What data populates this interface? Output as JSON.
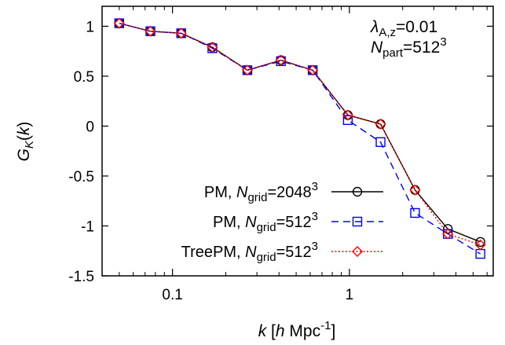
{
  "chart_data": {
    "type": "line",
    "title": "",
    "xlabel": {
      "var": "k",
      "pre": " [",
      "h": "h",
      "unit": " Mpc",
      "exp": "-1",
      "post": "]"
    },
    "ylabel": {
      "var": "G",
      "sub": "K",
      "open": "(",
      "arg": "k",
      "close": ")"
    },
    "xscale": "log",
    "xlim": [
      0.04,
      6.5
    ],
    "ylim": [
      -1.5,
      1.2
    ],
    "xticks": [
      {
        "value": 0.1,
        "label": "0.1"
      },
      {
        "value": 1,
        "label": "1"
      }
    ],
    "yticks": [
      {
        "value": 1,
        "label": "1"
      },
      {
        "value": 0.5,
        "label": "0.5"
      },
      {
        "value": 0,
        "label": "0"
      },
      {
        "value": -0.5,
        "label": "-0.5"
      },
      {
        "value": -1,
        "label": "-1"
      },
      {
        "value": -1.5,
        "label": "-1.5"
      }
    ],
    "grid": false,
    "legend_position": "bottom-left",
    "annotation": {
      "lambda": {
        "sym": "λ",
        "sub": "A,z",
        "rest": "=0.01"
      },
      "npart": {
        "sym": "N",
        "sub": "part",
        "rest": "=512",
        "exp": "3"
      }
    },
    "x": [
      0.05,
      0.075,
      0.112,
      0.168,
      0.265,
      0.41,
      0.62,
      0.98,
      1.5,
      2.35,
      3.6,
      5.5
    ],
    "series": [
      {
        "label": {
          "pre": "PM, ",
          "sym": "N",
          "sub": "grid",
          "rest": "=2048",
          "exp": "3"
        },
        "marker": "circle",
        "dash": "solid",
        "color": "#000000",
        "values": [
          1.03,
          0.95,
          0.93,
          0.79,
          0.56,
          0.66,
          0.56,
          0.11,
          0.02,
          -0.64,
          -1.03,
          -1.16
        ]
      },
      {
        "label": {
          "pre": "PM, ",
          "sym": "N",
          "sub": "grid",
          "rest": "=512",
          "exp": "3"
        },
        "marker": "square",
        "dash": "dashed",
        "color": "#0000ff",
        "values": [
          1.03,
          0.95,
          0.93,
          0.78,
          0.56,
          0.65,
          0.56,
          0.06,
          -0.16,
          -0.87,
          -1.08,
          -1.28
        ]
      },
      {
        "label": {
          "pre": "TreePM, ",
          "sym": "N",
          "sub": "grid",
          "rest": "=512",
          "exp": "3"
        },
        "marker": "diamond",
        "dash": "dotted",
        "color": "#ff0000",
        "values": [
          1.03,
          0.95,
          0.93,
          0.79,
          0.56,
          0.66,
          0.56,
          0.11,
          0.02,
          -0.64,
          -1.08,
          -1.19
        ]
      }
    ]
  }
}
